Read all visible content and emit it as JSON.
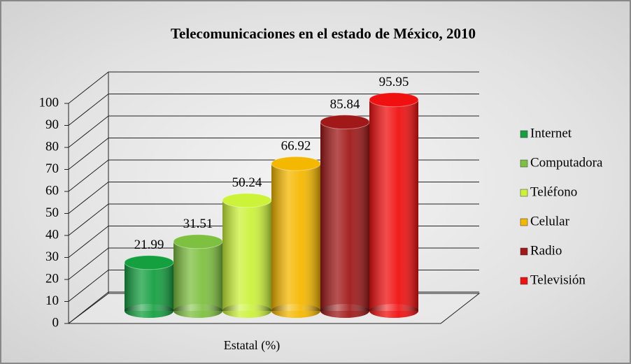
{
  "chart_data": {
    "type": "bar3d",
    "title": "Telecomunicaciones en el estado de México, 2010",
    "categories": [
      "Estatal (%)"
    ],
    "series": [
      {
        "name": "Internet",
        "color": "#15a040",
        "values": [
          21.99
        ]
      },
      {
        "name": "Computadora",
        "color": "#7ec040",
        "values": [
          31.51
        ]
      },
      {
        "name": "Teléfono",
        "color": "#ccf23a",
        "values": [
          50.24
        ]
      },
      {
        "name": "Celular",
        "color": "#f5b800",
        "values": [
          66.92
        ]
      },
      {
        "name": "Radio",
        "color": "#a01818",
        "values": [
          85.84
        ]
      },
      {
        "name": "Televisión",
        "color": "#f01010",
        "values": [
          95.95
        ]
      }
    ],
    "ylim": [
      0,
      100
    ],
    "yticks": [
      0,
      10,
      20,
      30,
      40,
      50,
      60,
      70,
      80,
      90,
      100
    ],
    "grid": true,
    "legend": "right"
  }
}
